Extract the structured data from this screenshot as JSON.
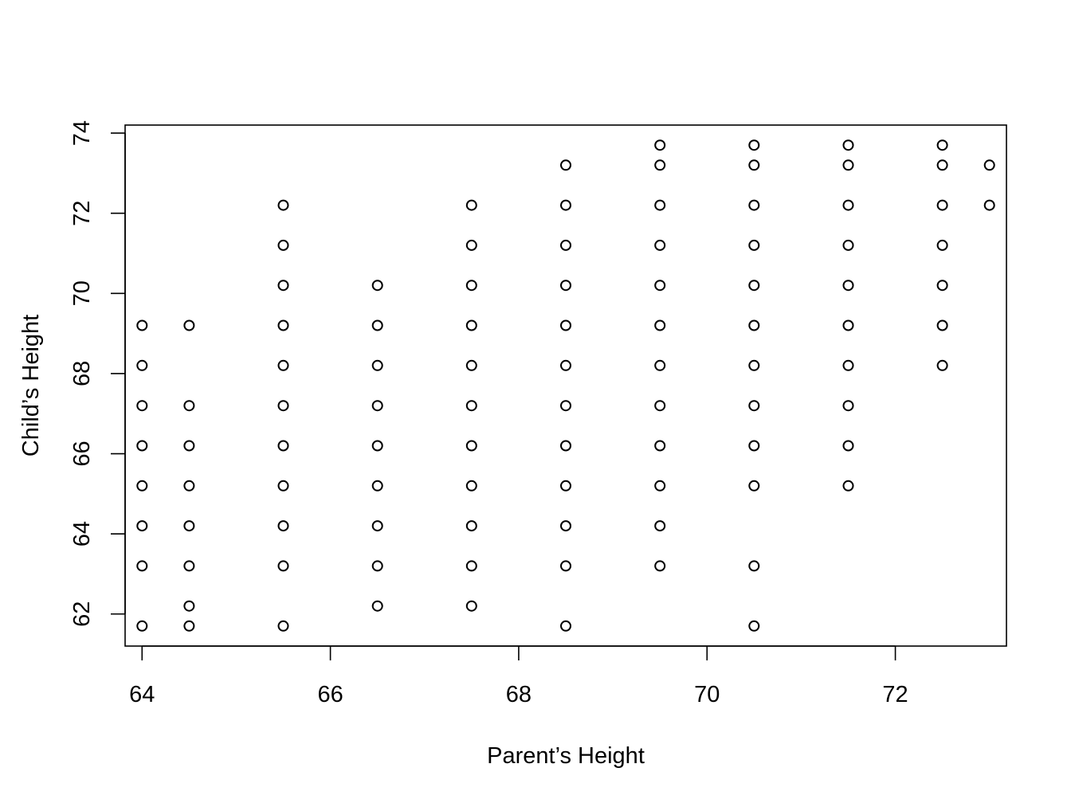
{
  "chart_data": {
    "type": "scatter",
    "title": "",
    "xlabel": "Parent’s Height",
    "ylabel": "Child’s Height",
    "xlim": [
      63.82,
      73.18
    ],
    "ylim": [
      61.2,
      74.2
    ],
    "xticks": [
      64,
      66,
      68,
      70,
      72
    ],
    "yticks": [
      62,
      64,
      66,
      68,
      70,
      72,
      74
    ],
    "grid": false,
    "legend": "none",
    "series": [
      {
        "points": [
          {
            "x": 64.0,
            "y": [
              61.7,
              63.2,
              64.2,
              65.2,
              66.2,
              67.2,
              68.2,
              69.2
            ]
          },
          {
            "x": 64.5,
            "y": [
              61.7,
              62.2,
              63.2,
              64.2,
              65.2,
              66.2,
              67.2,
              69.2
            ]
          },
          {
            "x": 65.5,
            "y": [
              61.7,
              63.2,
              64.2,
              65.2,
              66.2,
              67.2,
              68.2,
              69.2,
              70.2,
              71.2,
              72.2
            ]
          },
          {
            "x": 66.5,
            "y": [
              62.2,
              63.2,
              64.2,
              65.2,
              66.2,
              67.2,
              68.2,
              69.2,
              70.2
            ]
          },
          {
            "x": 67.5,
            "y": [
              62.2,
              63.2,
              64.2,
              65.2,
              66.2,
              67.2,
              68.2,
              69.2,
              70.2,
              71.2,
              72.2
            ]
          },
          {
            "x": 68.5,
            "y": [
              61.7,
              63.2,
              64.2,
              65.2,
              66.2,
              67.2,
              68.2,
              69.2,
              70.2,
              71.2,
              72.2,
              73.2
            ]
          },
          {
            "x": 69.5,
            "y": [
              63.2,
              64.2,
              65.2,
              66.2,
              67.2,
              68.2,
              69.2,
              70.2,
              71.2,
              72.2,
              73.2,
              73.7
            ]
          },
          {
            "x": 70.5,
            "y": [
              61.7,
              63.2,
              65.2,
              66.2,
              67.2,
              68.2,
              69.2,
              70.2,
              71.2,
              72.2,
              73.2,
              73.7
            ]
          },
          {
            "x": 71.5,
            "y": [
              65.2,
              66.2,
              67.2,
              68.2,
              69.2,
              70.2,
              71.2,
              72.2,
              73.2,
              73.7
            ]
          },
          {
            "x": 72.5,
            "y": [
              68.2,
              69.2,
              70.2,
              71.2,
              72.2,
              73.2,
              73.7
            ]
          },
          {
            "x": 73.0,
            "y": [
              72.2,
              73.2
            ]
          }
        ]
      }
    ]
  }
}
